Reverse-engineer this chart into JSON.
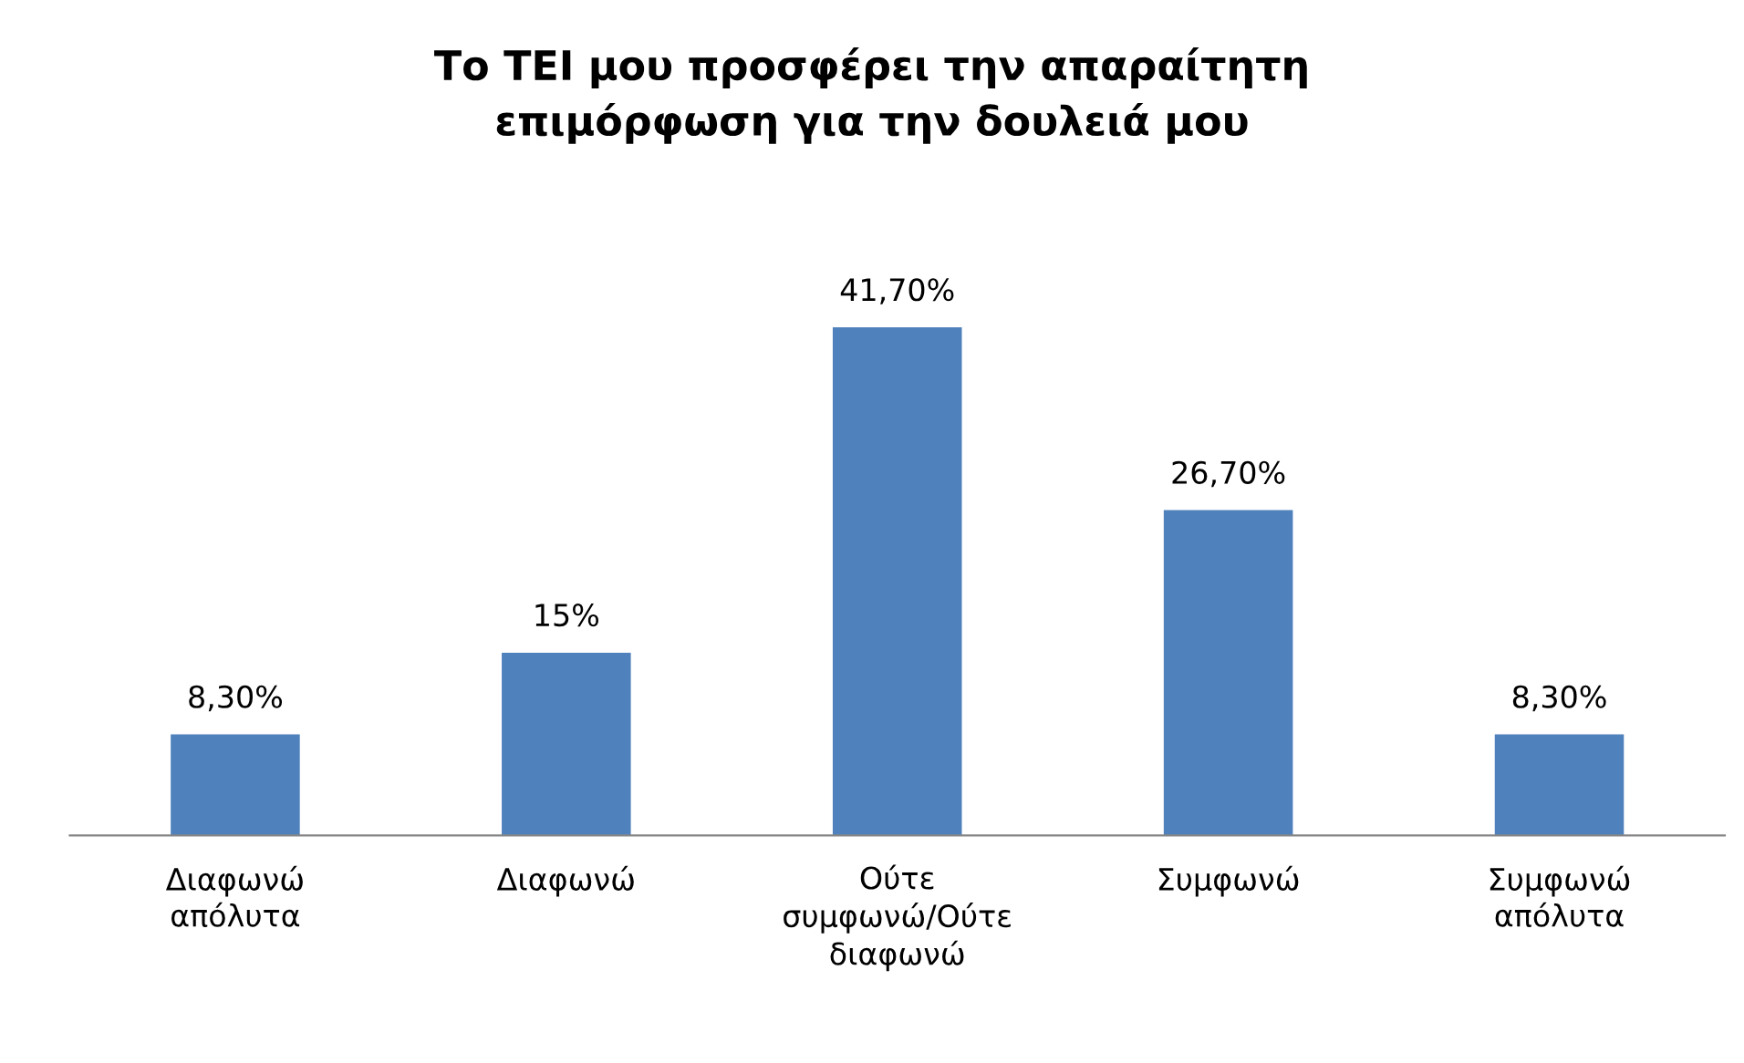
{
  "chart_data": {
    "type": "bar",
    "title": "Το ΤΕΙ μου προσφέρει την απαραίτητη\nεπιμόρφωση για την δουλειά μου",
    "categories": [
      "Διαφωνώ\nαπόλυτα",
      "Διαφωνώ",
      "Ούτε\nσυμφωνώ/Ούτε\nδιαφωνώ",
      "Συμφωνώ",
      "Συμφωνώ\nαπόλυτα"
    ],
    "values": [
      8.3,
      15,
      41.7,
      26.7,
      8.3
    ],
    "value_labels": [
      "8,30%",
      "15%",
      "41,70%",
      "26,70%",
      "8,30%"
    ],
    "color": "#4f81bd",
    "grid": false,
    "legend": false
  }
}
